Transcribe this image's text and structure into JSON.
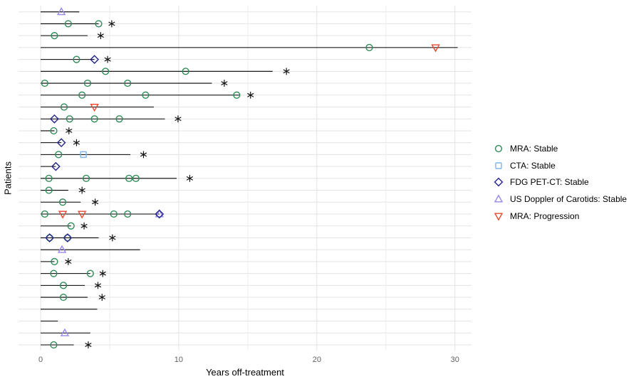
{
  "chart_data": {
    "type": "scatter",
    "subtype": "swimmer-plot",
    "title": "",
    "xlabel": "Years off-treatment",
    "ylabel": "Patients",
    "x_ticks": [
      0,
      10,
      20,
      30
    ],
    "x_major_gridlines": [
      0,
      10,
      20,
      30
    ],
    "x_minor_gridlines": [
      5,
      15,
      25
    ],
    "xlim": [
      -1.6,
      31.2
    ],
    "grid": true,
    "legend_position": "right",
    "legend": [
      {
        "key": "mra_stable",
        "label": "MRA: Stable",
        "shape": "circle",
        "color": "#2E8B57"
      },
      {
        "key": "cta_stable",
        "label": "CTA: Stable",
        "shape": "square",
        "color": "#7FB2E5"
      },
      {
        "key": "fdg_stable",
        "label": "FDG PET-CT: Stable",
        "shape": "diamond",
        "color": "#23238C"
      },
      {
        "key": "us_stable",
        "label": "US Doppler of Carotids: Stable",
        "shape": "triangle-up",
        "color": "#9688EC"
      },
      {
        "key": "mra_progression",
        "label": "MRA: Progression",
        "shape": "triangle-down",
        "color": "#E8482E"
      }
    ],
    "censor_marker": "asterisk",
    "patients": [
      {
        "follow_up_years": 2.8,
        "censor_x": null,
        "events": [
          {
            "type": "us_stable",
            "x": 1.5
          }
        ]
      },
      {
        "follow_up_years": 4.2,
        "censor_x": 5.15,
        "events": [
          {
            "type": "mra_stable",
            "x": 2.0
          },
          {
            "type": "mra_stable",
            "x": 4.2
          }
        ]
      },
      {
        "follow_up_years": 3.4,
        "censor_x": 4.35,
        "events": [
          {
            "type": "mra_stable",
            "x": 1.0
          }
        ]
      },
      {
        "follow_up_years": 30.2,
        "censor_x": null,
        "events": [
          {
            "type": "mra_stable",
            "x": 23.8
          },
          {
            "type": "mra_progression",
            "x": 28.6
          }
        ]
      },
      {
        "follow_up_years": 3.9,
        "censor_x": 4.85,
        "events": [
          {
            "type": "mra_stable",
            "x": 2.6
          },
          {
            "type": "fdg_stable",
            "x": 3.9
          }
        ]
      },
      {
        "follow_up_years": 16.8,
        "censor_x": 17.8,
        "events": [
          {
            "type": "mra_stable",
            "x": 4.7
          },
          {
            "type": "mra_stable",
            "x": 10.5
          }
        ]
      },
      {
        "follow_up_years": 12.4,
        "censor_x": 13.3,
        "events": [
          {
            "type": "mra_stable",
            "x": 0.3
          },
          {
            "type": "mra_stable",
            "x": 3.4
          },
          {
            "type": "mra_stable",
            "x": 6.3
          }
        ]
      },
      {
        "follow_up_years": 14.4,
        "censor_x": 15.2,
        "events": [
          {
            "type": "mra_stable",
            "x": 3.0
          },
          {
            "type": "mra_stable",
            "x": 7.6
          },
          {
            "type": "mra_stable",
            "x": 14.2
          }
        ]
      },
      {
        "follow_up_years": 8.2,
        "censor_x": null,
        "events": [
          {
            "type": "mra_stable",
            "x": 1.7
          },
          {
            "type": "mra_progression",
            "x": 3.9
          }
        ]
      },
      {
        "follow_up_years": 9.0,
        "censor_x": 9.95,
        "events": [
          {
            "type": "fdg_stable",
            "x": 1.0
          },
          {
            "type": "mra_stable",
            "x": 2.1
          },
          {
            "type": "mra_stable",
            "x": 3.9
          },
          {
            "type": "mra_stable",
            "x": 5.7
          }
        ]
      },
      {
        "follow_up_years": 1.0,
        "censor_x": 2.05,
        "events": [
          {
            "type": "mra_stable",
            "x": 0.95
          }
        ]
      },
      {
        "follow_up_years": 1.5,
        "censor_x": 2.6,
        "events": [
          {
            "type": "fdg_stable",
            "x": 1.5
          }
        ]
      },
      {
        "follow_up_years": 6.5,
        "censor_x": 7.45,
        "events": [
          {
            "type": "mra_stable",
            "x": 1.3
          },
          {
            "type": "cta_stable",
            "x": 3.1
          }
        ]
      },
      {
        "follow_up_years": 1.1,
        "censor_x": null,
        "events": [
          {
            "type": "fdg_stable",
            "x": 1.1
          }
        ]
      },
      {
        "follow_up_years": 9.85,
        "censor_x": 10.8,
        "events": [
          {
            "type": "mra_stable",
            "x": 0.6
          },
          {
            "type": "mra_stable",
            "x": 3.3
          },
          {
            "type": "mra_stable",
            "x": 6.4
          },
          {
            "type": "mra_stable",
            "x": 6.9
          }
        ]
      },
      {
        "follow_up_years": 2.0,
        "censor_x": 3.0,
        "events": [
          {
            "type": "mra_stable",
            "x": 0.6
          }
        ]
      },
      {
        "follow_up_years": 2.9,
        "censor_x": 3.95,
        "events": [
          {
            "type": "mra_stable",
            "x": 1.6
          }
        ]
      },
      {
        "follow_up_years": 8.6,
        "censor_x": null,
        "events": [
          {
            "type": "mra_stable",
            "x": 0.3
          },
          {
            "type": "mra_progression",
            "x": 1.6
          },
          {
            "type": "mra_progression",
            "x": 3.0
          },
          {
            "type": "mra_stable",
            "x": 5.3
          },
          {
            "type": "mra_stable",
            "x": 6.3
          },
          {
            "type": "us_stable",
            "x": 8.6
          },
          {
            "type": "fdg_stable",
            "x": 8.6
          }
        ]
      },
      {
        "follow_up_years": 2.2,
        "censor_x": 3.15,
        "events": [
          {
            "type": "mra_stable",
            "x": 2.2
          }
        ]
      },
      {
        "follow_up_years": 4.2,
        "censor_x": 5.2,
        "events": [
          {
            "type": "mra_stable",
            "x": 0.65
          },
          {
            "type": "fdg_stable",
            "x": 0.65
          },
          {
            "type": "mra_stable",
            "x": 1.95
          },
          {
            "type": "fdg_stable",
            "x": 1.95
          }
        ]
      },
      {
        "follow_up_years": 7.2,
        "censor_x": null,
        "events": [
          {
            "type": "us_stable",
            "x": 1.55
          }
        ]
      },
      {
        "follow_up_years": 1.0,
        "censor_x": 2.0,
        "events": [
          {
            "type": "mra_stable",
            "x": 1.0
          }
        ]
      },
      {
        "follow_up_years": 3.6,
        "censor_x": 4.5,
        "events": [
          {
            "type": "mra_stable",
            "x": 0.95
          },
          {
            "type": "mra_stable",
            "x": 3.6
          }
        ]
      },
      {
        "follow_up_years": 3.2,
        "censor_x": 4.15,
        "events": [
          {
            "type": "mra_stable",
            "x": 1.65
          }
        ]
      },
      {
        "follow_up_years": 3.4,
        "censor_x": 4.45,
        "events": [
          {
            "type": "mra_stable",
            "x": 1.65
          }
        ]
      },
      {
        "follow_up_years": 4.1,
        "censor_x": null,
        "events": []
      },
      {
        "follow_up_years": 1.25,
        "censor_x": null,
        "events": []
      },
      {
        "follow_up_years": 3.6,
        "censor_x": null,
        "events": [
          {
            "type": "us_stable",
            "x": 1.75
          }
        ]
      },
      {
        "follow_up_years": 2.4,
        "censor_x": 3.45,
        "events": [
          {
            "type": "mra_stable",
            "x": 0.95
          }
        ]
      }
    ]
  },
  "style_colors": {
    "line": "#000000",
    "censor": "#111111",
    "grid_major": "#e3e3e3",
    "grid_minor": "#ededed",
    "tick_label": "#606060"
  }
}
